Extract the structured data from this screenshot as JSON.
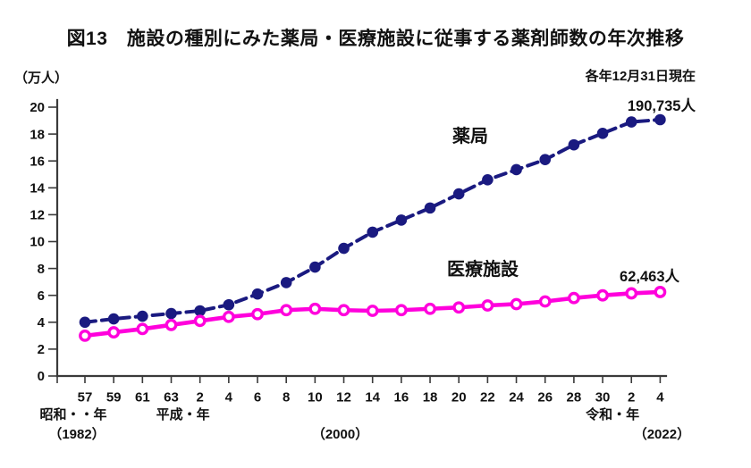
{
  "chart_data": {
    "type": "line",
    "title": "図13　施設の種別にみた薬局・医療施設に従事する薬剤師数の年次推移",
    "unit_label": "（万人）",
    "date_note": "各年12月31日現在",
    "x_tick_labels": [
      "57",
      "59",
      "61",
      "63",
      "2",
      "4",
      "6",
      "8",
      "10",
      "12",
      "14",
      "16",
      "18",
      "20",
      "22",
      "24",
      "26",
      "28",
      "30",
      "2",
      "4"
    ],
    "ylim": [
      0,
      20
    ],
    "ytick_step": 2,
    "grid": false,
    "legend_position": "inline-labels",
    "series": [
      {
        "name": "薬局",
        "color": "#1a1a80",
        "line_style": "dashed",
        "marker": "filled-circle",
        "end_label": "190,735人",
        "values": [
          4.0,
          4.25,
          4.45,
          4.65,
          4.85,
          5.3,
          6.1,
          6.95,
          8.1,
          9.5,
          10.7,
          11.6,
          12.5,
          13.55,
          14.6,
          15.35,
          16.1,
          17.2,
          18.05,
          18.9,
          19.07
        ]
      },
      {
        "name": "医療施設",
        "color": "#ff00dc",
        "line_style": "solid",
        "marker": "open-circle",
        "end_label": "62,463人",
        "values": [
          3.0,
          3.25,
          3.5,
          3.8,
          4.1,
          4.4,
          4.6,
          4.9,
          5.0,
          4.9,
          4.85,
          4.9,
          5.0,
          5.1,
          5.25,
          5.35,
          5.55,
          5.8,
          6.0,
          6.15,
          6.25
        ]
      }
    ],
    "era_annotations": [
      {
        "text": "昭和・・年",
        "index": 0,
        "dx": -13,
        "row": 0
      },
      {
        "text": "（1982）",
        "index": 0,
        "dx": -9,
        "row": 1
      },
      {
        "text": "平成・年",
        "index": 3.5,
        "dx": -3,
        "row": 0
      },
      {
        "text": "（2000）",
        "index": 9,
        "dx": -4,
        "row": 1
      },
      {
        "text": "令和・年",
        "index": 18.5,
        "dx": -5,
        "row": 0
      },
      {
        "text": "（2022）",
        "index": 20,
        "dx": 2,
        "row": 1
      }
    ]
  }
}
